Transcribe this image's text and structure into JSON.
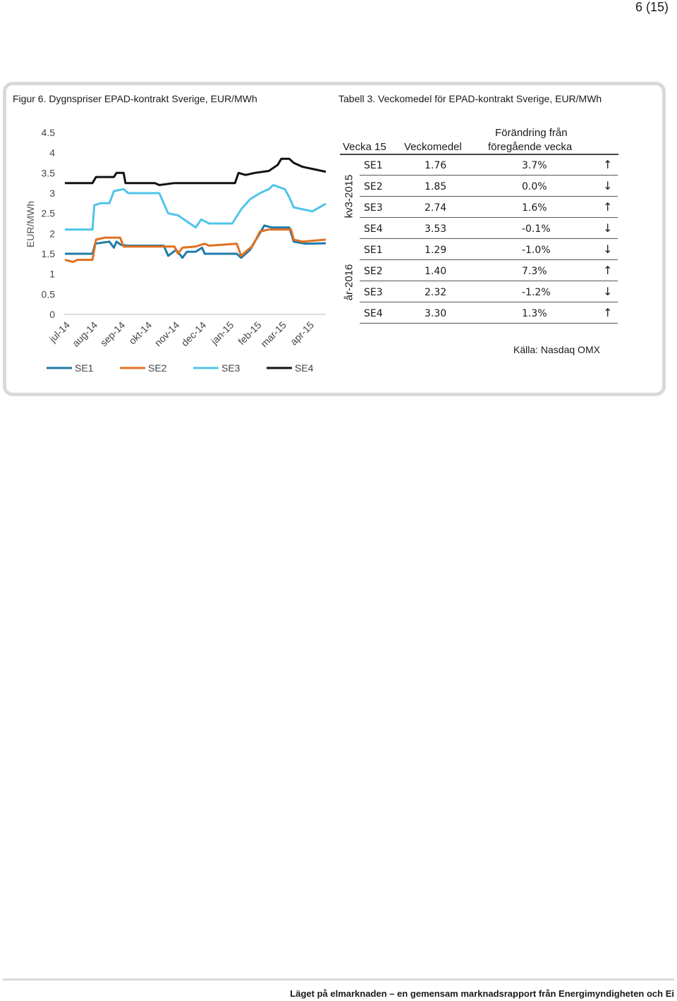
{
  "page_number": "6 (15)",
  "figure_caption": "Figur 6. Dygnspriser EPAD-kontrakt Sverige, EUR/MWh",
  "table_caption": "Tabell 3. Veckomedel för EPAD-kontrakt Sverige, EUR/MWh",
  "chart_data": {
    "type": "line",
    "title": "",
    "xlabel": "",
    "ylabel": "EUR/MWh",
    "ylim": [
      0,
      4.5
    ],
    "yticks": [
      "0",
      "0.5",
      "1",
      "1.5",
      "2",
      "2.5",
      "3",
      "3.5",
      "4",
      "4.5"
    ],
    "x_tick_labels": [
      "jul-14",
      "aug-14",
      "sep-14",
      "okt-14",
      "nov-14",
      "dec-14",
      "jan-15",
      "feb-15",
      "mar-15",
      "apr-15"
    ],
    "grid": false,
    "legend_position": "bottom",
    "x_unit": "date",
    "x_range": [
      "2014-07-01",
      "2015-04-20"
    ],
    "series": [
      {
        "name": "SE1",
        "color": "#1f7aa8",
        "points": [
          [
            "2014-07-01",
            1.5
          ],
          [
            "2014-08-01",
            1.5
          ],
          [
            "2014-08-04",
            1.75
          ],
          [
            "2014-08-20",
            1.8
          ],
          [
            "2014-08-25",
            1.65
          ],
          [
            "2014-08-28",
            1.8
          ],
          [
            "2014-09-02",
            1.72
          ],
          [
            "2014-09-10",
            1.7
          ],
          [
            "2014-10-10",
            1.7
          ],
          [
            "2014-10-20",
            1.7
          ],
          [
            "2014-10-25",
            1.45
          ],
          [
            "2014-11-03",
            1.6
          ],
          [
            "2014-11-10",
            1.4
          ],
          [
            "2014-11-15",
            1.55
          ],
          [
            "2014-11-25",
            1.55
          ],
          [
            "2014-12-02",
            1.65
          ],
          [
            "2014-12-05",
            1.5
          ],
          [
            "2014-12-15",
            1.5
          ],
          [
            "2015-01-10",
            1.5
          ],
          [
            "2015-01-15",
            1.4
          ],
          [
            "2015-01-20",
            1.5
          ],
          [
            "2015-01-25",
            1.6
          ],
          [
            "2015-01-30",
            1.8
          ],
          [
            "2015-02-02",
            1.9
          ],
          [
            "2015-02-10",
            2.2
          ],
          [
            "2015-02-18",
            2.15
          ],
          [
            "2015-03-10",
            2.15
          ],
          [
            "2015-03-15",
            1.8
          ],
          [
            "2015-03-28",
            1.75
          ],
          [
            "2015-04-20",
            1.76
          ]
        ]
      },
      {
        "name": "SE2",
        "color": "#e07020",
        "points": [
          [
            "2014-07-01",
            1.35
          ],
          [
            "2014-07-10",
            1.3
          ],
          [
            "2014-07-15",
            1.35
          ],
          [
            "2014-07-20",
            1.35
          ],
          [
            "2014-08-01",
            1.35
          ],
          [
            "2014-08-05",
            1.85
          ],
          [
            "2014-08-15",
            1.9
          ],
          [
            "2014-09-01",
            1.9
          ],
          [
            "2014-09-05",
            1.68
          ],
          [
            "2014-10-05",
            1.68
          ],
          [
            "2014-11-01",
            1.68
          ],
          [
            "2014-11-05",
            1.5
          ],
          [
            "2014-11-10",
            1.65
          ],
          [
            "2014-11-25",
            1.68
          ],
          [
            "2014-12-05",
            1.75
          ],
          [
            "2014-12-10",
            1.7
          ],
          [
            "2015-01-10",
            1.75
          ],
          [
            "2015-01-15",
            1.45
          ],
          [
            "2015-01-20",
            1.55
          ],
          [
            "2015-01-28",
            1.7
          ],
          [
            "2015-02-05",
            2.05
          ],
          [
            "2015-02-15",
            2.1
          ],
          [
            "2015-03-12",
            2.1
          ],
          [
            "2015-03-15",
            1.85
          ],
          [
            "2015-03-25",
            1.8
          ],
          [
            "2015-04-20",
            1.85
          ]
        ]
      },
      {
        "name": "SE3",
        "color": "#4fc4ea",
        "points": [
          [
            "2014-07-01",
            2.1
          ],
          [
            "2014-07-20",
            2.1
          ],
          [
            "2014-08-01",
            2.1
          ],
          [
            "2014-08-03",
            2.7
          ],
          [
            "2014-08-10",
            2.75
          ],
          [
            "2014-08-20",
            2.75
          ],
          [
            "2014-08-25",
            3.05
          ],
          [
            "2014-09-05",
            3.1
          ],
          [
            "2014-09-10",
            3.0
          ],
          [
            "2014-10-15",
            3.0
          ],
          [
            "2014-10-25",
            2.5
          ],
          [
            "2014-11-05",
            2.45
          ],
          [
            "2014-11-15",
            2.3
          ],
          [
            "2014-11-25",
            2.15
          ],
          [
            "2014-12-01",
            2.35
          ],
          [
            "2014-12-10",
            2.25
          ],
          [
            "2015-01-05",
            2.25
          ],
          [
            "2015-01-15",
            2.6
          ],
          [
            "2015-01-25",
            2.85
          ],
          [
            "2015-02-05",
            3.0
          ],
          [
            "2015-02-15",
            3.1
          ],
          [
            "2015-02-20",
            3.2
          ],
          [
            "2015-03-05",
            3.1
          ],
          [
            "2015-03-10",
            2.9
          ],
          [
            "2015-03-15",
            2.65
          ],
          [
            "2015-03-25",
            2.6
          ],
          [
            "2015-04-05",
            2.55
          ],
          [
            "2015-04-20",
            2.74
          ]
        ]
      },
      {
        "name": "SE4",
        "color": "#111111",
        "points": [
          [
            "2014-07-01",
            3.25
          ],
          [
            "2014-08-01",
            3.25
          ],
          [
            "2014-08-05",
            3.4
          ],
          [
            "2014-08-25",
            3.4
          ],
          [
            "2014-08-28",
            3.5
          ],
          [
            "2014-09-05",
            3.5
          ],
          [
            "2014-09-07",
            3.25
          ],
          [
            "2014-10-10",
            3.25
          ],
          [
            "2014-10-15",
            3.2
          ],
          [
            "2014-11-01",
            3.25
          ],
          [
            "2014-12-05",
            3.25
          ],
          [
            "2015-01-08",
            3.25
          ],
          [
            "2015-01-12",
            3.5
          ],
          [
            "2015-01-20",
            3.45
          ],
          [
            "2015-01-30",
            3.5
          ],
          [
            "2015-02-15",
            3.55
          ],
          [
            "2015-02-25",
            3.7
          ],
          [
            "2015-03-01",
            3.85
          ],
          [
            "2015-03-10",
            3.85
          ],
          [
            "2015-03-15",
            3.75
          ],
          [
            "2015-03-25",
            3.65
          ],
          [
            "2015-04-05",
            3.6
          ],
          [
            "2015-04-20",
            3.53
          ]
        ]
      }
    ]
  },
  "table": {
    "header": {
      "week": "Vecka 15",
      "avg": "Veckomedel",
      "change_line1": "Förändring från",
      "change_line2": "föregående vecka"
    },
    "groups": [
      {
        "label": "kv3-2015",
        "rows": [
          {
            "area": "SE1",
            "value": "1.76",
            "change": "3.7%",
            "arrow": "↑"
          },
          {
            "area": "SE2",
            "value": "1.85",
            "change": "0.0%",
            "arrow": "↓"
          },
          {
            "area": "SE3",
            "value": "2.74",
            "change": "1.6%",
            "arrow": "↑"
          },
          {
            "area": "SE4",
            "value": "3.53",
            "change": "-0.1%",
            "arrow": "↓"
          }
        ]
      },
      {
        "label": "år-2016",
        "rows": [
          {
            "area": "SE1",
            "value": "1.29",
            "change": "-1.0%",
            "arrow": "↓"
          },
          {
            "area": "SE2",
            "value": "1.40",
            "change": "7.3%",
            "arrow": "↑"
          },
          {
            "area": "SE3",
            "value": "2.32",
            "change": "-1.2%",
            "arrow": "↓"
          },
          {
            "area": "SE4",
            "value": "3.30",
            "change": "1.3%",
            "arrow": "↑"
          }
        ]
      }
    ]
  },
  "source": "Källa: Nasdaq OMX",
  "footer": "Läget på elmarknaden – en gemensam marknadsrapport från Energimyndigheten och Ei"
}
